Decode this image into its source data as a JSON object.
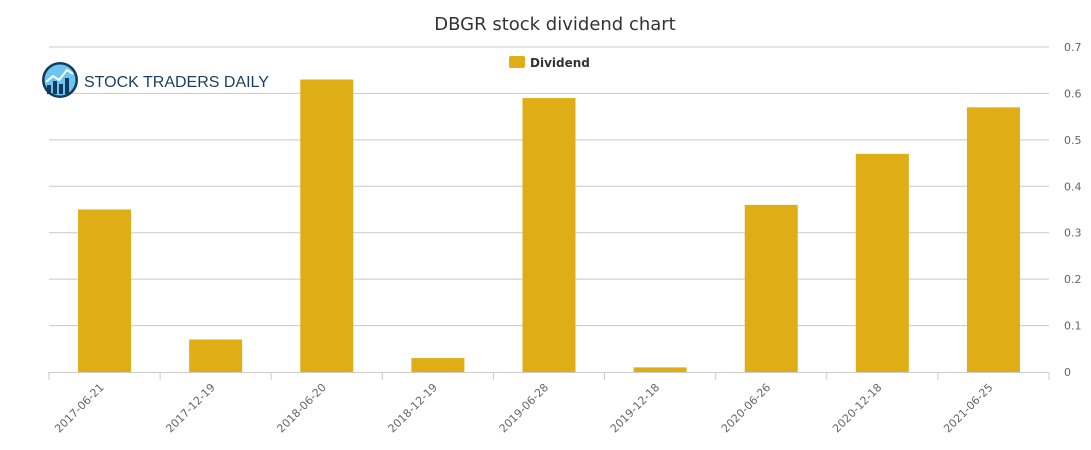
{
  "brand": {
    "logo_icon": "stock-chart-globe-icon",
    "name": "STOCK TRADERS DAILY"
  },
  "chart_data": {
    "type": "bar",
    "title": "DBGR stock dividend chart",
    "xlabel": "",
    "ylabel": "",
    "categories": [
      "2017-06-21",
      "2017-12-19",
      "2018-06-20",
      "2018-12-19",
      "2019-06-28",
      "2019-12-18",
      "2020-06-26",
      "2020-12-18",
      "2021-06-25"
    ],
    "series": [
      {
        "name": "Dividend",
        "color": "#dfae16",
        "values": [
          0.35,
          0.07,
          0.63,
          0.03,
          0.59,
          0.01,
          0.36,
          0.47,
          0.57
        ]
      }
    ],
    "ylim": [
      0,
      0.7
    ],
    "yticks": [
      "0",
      "0.1",
      "0.2",
      "0.3",
      "0.4",
      "0.5",
      "0.6",
      "0.7"
    ],
    "yaxis_side": "right",
    "grid": true,
    "legend_position": "top-center"
  },
  "colors": {
    "gridline": "#c8c8c8",
    "axis": "#cccccc"
  }
}
